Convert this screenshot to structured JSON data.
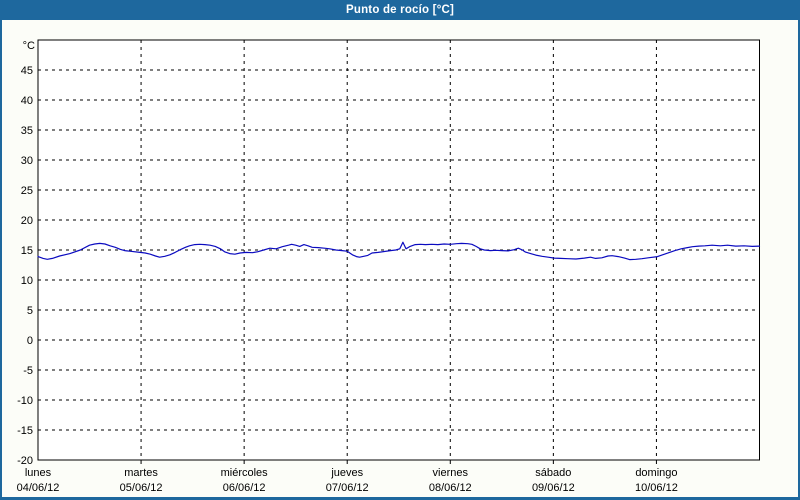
{
  "header": {
    "title": "Punto de rocío [°C]"
  },
  "colors": {
    "accent_blue": "#1e689e",
    "window_bg": "#fcfdf8",
    "plot_bg": "#ffffff",
    "grid": "#000000",
    "axis": "#000000",
    "label": "#000000",
    "line": "#0b0bc0",
    "title_text": "#ffffff"
  },
  "chart_data": {
    "type": "line",
    "title": "Punto de rocío [°C]",
    "xlabel": "",
    "ylabel": "°C",
    "ylim": [
      -20,
      50
    ],
    "y_ticks": [
      45,
      40,
      35,
      30,
      25,
      20,
      15,
      10,
      5,
      0,
      -5,
      -10,
      -15,
      -20
    ],
    "grid": "dashed",
    "legend_position": "none",
    "x_range_days": [
      0,
      7
    ],
    "x_axis_days": [
      {
        "name": "lunes",
        "date": "04/06/12"
      },
      {
        "name": "martes",
        "date": "05/06/12"
      },
      {
        "name": "miércoles",
        "date": "06/06/12"
      },
      {
        "name": "jueves",
        "date": "07/06/12"
      },
      {
        "name": "viernes",
        "date": "08/06/12"
      },
      {
        "name": "sábado",
        "date": "09/06/12"
      },
      {
        "name": "domingo",
        "date": "10/06/12"
      }
    ],
    "series": [
      {
        "name": "Punto de rocío",
        "color": "#0b0bc0",
        "points": [
          [
            0.0,
            13.9
          ],
          [
            0.05,
            13.6
          ],
          [
            0.09,
            13.45
          ],
          [
            0.14,
            13.6
          ],
          [
            0.21,
            14.0
          ],
          [
            0.31,
            14.4
          ],
          [
            0.41,
            15.0
          ],
          [
            0.5,
            15.8
          ],
          [
            0.55,
            16.0
          ],
          [
            0.6,
            16.1
          ],
          [
            0.65,
            16.0
          ],
          [
            0.7,
            15.7
          ],
          [
            0.75,
            15.45
          ],
          [
            0.8,
            15.1
          ],
          [
            0.84,
            14.9
          ],
          [
            0.89,
            14.8
          ],
          [
            0.99,
            14.6
          ],
          [
            1.04,
            14.5
          ],
          [
            1.09,
            14.3
          ],
          [
            1.14,
            14.0
          ],
          [
            1.18,
            13.8
          ],
          [
            1.23,
            13.95
          ],
          [
            1.28,
            14.2
          ],
          [
            1.33,
            14.6
          ],
          [
            1.38,
            15.05
          ],
          [
            1.43,
            15.45
          ],
          [
            1.47,
            15.7
          ],
          [
            1.52,
            15.9
          ],
          [
            1.57,
            15.95
          ],
          [
            1.62,
            15.9
          ],
          [
            1.67,
            15.8
          ],
          [
            1.72,
            15.6
          ],
          [
            1.77,
            15.2
          ],
          [
            1.81,
            14.7
          ],
          [
            1.86,
            14.4
          ],
          [
            1.91,
            14.3
          ],
          [
            1.96,
            14.5
          ],
          [
            2.02,
            14.6
          ],
          [
            2.08,
            14.55
          ],
          [
            2.13,
            14.7
          ],
          [
            2.19,
            15.0
          ],
          [
            2.25,
            15.3
          ],
          [
            2.31,
            15.2
          ],
          [
            2.37,
            15.55
          ],
          [
            2.43,
            15.8
          ],
          [
            2.46,
            15.95
          ],
          [
            2.5,
            15.8
          ],
          [
            2.54,
            15.6
          ],
          [
            2.58,
            15.9
          ],
          [
            2.62,
            15.7
          ],
          [
            2.66,
            15.45
          ],
          [
            2.72,
            15.4
          ],
          [
            2.78,
            15.3
          ],
          [
            2.83,
            15.2
          ],
          [
            2.89,
            15.0
          ],
          [
            2.95,
            14.9
          ],
          [
            3.0,
            14.8
          ],
          [
            3.05,
            14.2
          ],
          [
            3.09,
            13.9
          ],
          [
            3.12,
            13.8
          ],
          [
            3.16,
            13.95
          ],
          [
            3.2,
            14.1
          ],
          [
            3.24,
            14.5
          ],
          [
            3.3,
            14.6
          ],
          [
            3.36,
            14.75
          ],
          [
            3.42,
            14.9
          ],
          [
            3.47,
            15.0
          ],
          [
            3.51,
            15.2
          ],
          [
            3.54,
            16.3
          ],
          [
            3.57,
            15.2
          ],
          [
            3.61,
            15.6
          ],
          [
            3.66,
            15.9
          ],
          [
            3.71,
            15.95
          ],
          [
            3.76,
            15.9
          ],
          [
            3.82,
            15.95
          ],
          [
            3.88,
            15.9
          ],
          [
            3.94,
            16.0
          ],
          [
            4.0,
            15.95
          ],
          [
            4.06,
            16.05
          ],
          [
            4.11,
            16.1
          ],
          [
            4.17,
            16.05
          ],
          [
            4.21,
            15.95
          ],
          [
            4.25,
            15.6
          ],
          [
            4.29,
            15.2
          ],
          [
            4.33,
            15.0
          ],
          [
            4.39,
            14.9
          ],
          [
            4.44,
            14.95
          ],
          [
            4.5,
            14.9
          ],
          [
            4.56,
            14.85
          ],
          [
            4.62,
            15.05
          ],
          [
            4.66,
            15.3
          ],
          [
            4.7,
            15.0
          ],
          [
            4.73,
            14.65
          ],
          [
            4.77,
            14.45
          ],
          [
            4.83,
            14.15
          ],
          [
            4.89,
            13.95
          ],
          [
            4.95,
            13.8
          ],
          [
            5.01,
            13.65
          ],
          [
            5.07,
            13.6
          ],
          [
            5.14,
            13.55
          ],
          [
            5.22,
            13.5
          ],
          [
            5.3,
            13.65
          ],
          [
            5.36,
            13.8
          ],
          [
            5.41,
            13.6
          ],
          [
            5.47,
            13.7
          ],
          [
            5.53,
            14.0
          ],
          [
            5.57,
            14.05
          ],
          [
            5.63,
            13.9
          ],
          [
            5.69,
            13.65
          ],
          [
            5.74,
            13.4
          ],
          [
            5.8,
            13.45
          ],
          [
            5.86,
            13.55
          ],
          [
            5.92,
            13.7
          ],
          [
            6.01,
            13.9
          ],
          [
            6.06,
            14.2
          ],
          [
            6.12,
            14.55
          ],
          [
            6.18,
            14.9
          ],
          [
            6.24,
            15.2
          ],
          [
            6.3,
            15.4
          ],
          [
            6.35,
            15.55
          ],
          [
            6.41,
            15.65
          ],
          [
            6.47,
            15.7
          ],
          [
            6.54,
            15.8
          ],
          [
            6.62,
            15.7
          ],
          [
            6.69,
            15.8
          ],
          [
            6.77,
            15.65
          ],
          [
            6.85,
            15.7
          ],
          [
            6.93,
            15.6
          ],
          [
            7.0,
            15.65
          ]
        ]
      }
    ]
  }
}
